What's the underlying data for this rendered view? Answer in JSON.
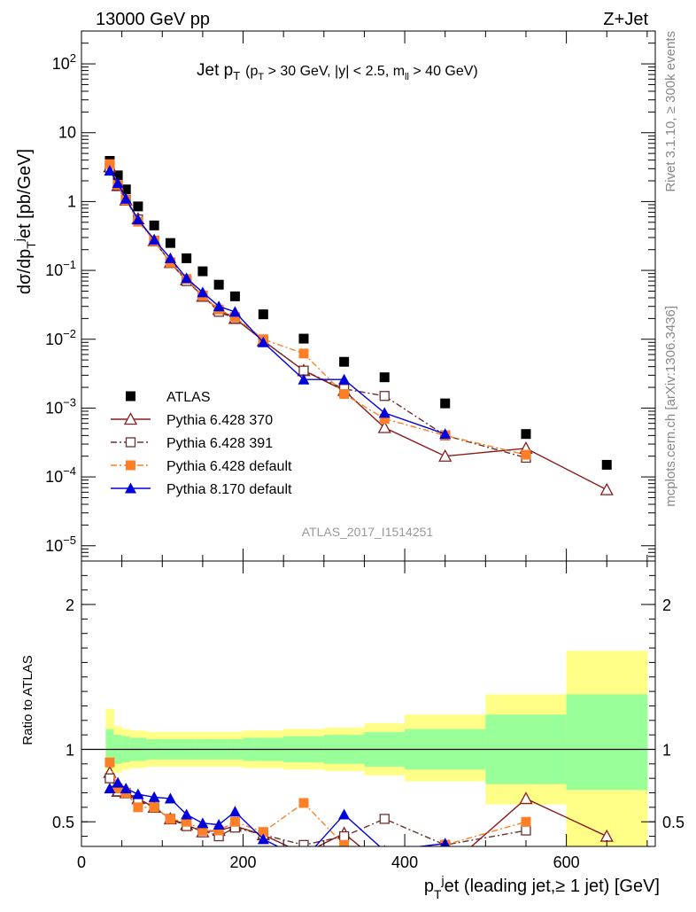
{
  "header": {
    "left": "13000 GeV pp",
    "right": "Z+Jet"
  },
  "side_labels": {
    "rivet": "Rivet 3.1.10, ≥ 300k events",
    "mcplots": "mcplots.cern.ch [arXiv:1306.3436]"
  },
  "chart_data": [
    {
      "type": "line",
      "title_main": "Jet p",
      "title_main_sub": "T",
      "title_detail": "(p",
      "title_detail_sub": "T",
      "title_detail_rest": " > 30 GeV, |y| < 2.5, m",
      "title_detail_sub2": "ll",
      "title_detail_end": " > 40 GeV)",
      "ylabel": "dσ/dp",
      "ylabel_sub": "T",
      "ylabel_sup": "j",
      "ylabel_rest": "et [pb/GeV]",
      "watermark": "ATLAS_2017_I1514251",
      "yscale": "log",
      "xlim": [
        0,
        710
      ],
      "ylim": [
        6e-06,
        300
      ],
      "y_ticks": [
        {
          "value": 1e-05,
          "base": "10",
          "exp": "−5"
        },
        {
          "value": 0.0001,
          "base": "10",
          "exp": "−4"
        },
        {
          "value": 0.001,
          "base": "10",
          "exp": "−3"
        },
        {
          "value": 0.01,
          "base": "10",
          "exp": "−2"
        },
        {
          "value": 0.1,
          "base": "10",
          "exp": "−1"
        },
        {
          "value": 1,
          "base": "1",
          "exp": ""
        },
        {
          "value": 10,
          "base": "10",
          "exp": ""
        },
        {
          "value": 100,
          "base": "10",
          "exp": "2"
        }
      ],
      "legend_position": "bottom-left",
      "series": [
        {
          "name": "ATLAS",
          "color": "#000000",
          "marker": "square-filled",
          "line": "none",
          "x": [
            35,
            45,
            55,
            70,
            90,
            110,
            130,
            150,
            170,
            190,
            225,
            275,
            325,
            375,
            450,
            550,
            650
          ],
          "y": [
            3.9,
            2.4,
            1.5,
            0.85,
            0.45,
            0.25,
            0.15,
            0.097,
            0.062,
            0.042,
            0.023,
            0.0102,
            0.0047,
            0.0028,
            0.00117,
            0.00042,
            0.00015
          ]
        },
        {
          "name": "Pythia 6.428 370",
          "color": "#8b1a1a",
          "marker": "triangle-open",
          "line": "solid",
          "x": [
            35,
            45,
            55,
            70,
            90,
            110,
            130,
            150,
            170,
            190,
            225,
            275,
            325,
            375,
            450,
            550,
            650
          ],
          "y": [
            3.2,
            1.7,
            1.05,
            0.56,
            0.27,
            0.13,
            0.073,
            0.042,
            0.027,
            0.02,
            0.0095,
            0.0035,
            0.0018,
            0.00052,
            0.0002,
            0.00026,
            6.5e-05
          ]
        },
        {
          "name": "Pythia 6.428 391",
          "color": "#6b3030",
          "marker": "square-open",
          "line": "dashdot",
          "x": [
            35,
            45,
            55,
            70,
            90,
            110,
            130,
            150,
            170,
            190,
            225,
            275,
            325,
            375,
            450,
            550
          ],
          "y": [
            3.1,
            1.7,
            1.05,
            0.55,
            0.27,
            0.13,
            0.07,
            0.043,
            0.025,
            0.02,
            0.0095,
            0.0035,
            0.0019,
            0.0015,
            0.0004,
            0.00019
          ]
        },
        {
          "name": "Pythia 6.428 default",
          "color": "#ff7f27",
          "marker": "square-filled",
          "line": "dashdot",
          "x": [
            35,
            45,
            55,
            70,
            90,
            110,
            130,
            150,
            170,
            190,
            225,
            275,
            325,
            375,
            450,
            550
          ],
          "y": [
            3.5,
            1.75,
            1.05,
            0.51,
            0.27,
            0.13,
            0.075,
            0.043,
            0.027,
            0.021,
            0.01,
            0.0062,
            0.0016,
            0.0007,
            0.0004,
            0.00021
          ]
        },
        {
          "name": "Pythia 8.170 default",
          "color": "#0000dd",
          "marker": "triangle-filled",
          "line": "solid",
          "x": [
            35,
            45,
            55,
            70,
            90,
            110,
            130,
            150,
            170,
            190,
            225,
            275,
            325,
            375,
            450
          ],
          "y": [
            2.8,
            1.85,
            1.1,
            0.55,
            0.28,
            0.15,
            0.077,
            0.048,
            0.03,
            0.025,
            0.009,
            0.0026,
            0.0026,
            0.00085,
            0.00042
          ]
        }
      ]
    },
    {
      "type": "line",
      "ylabel": "Ratio to ATLAS",
      "xlabel": "p",
      "xlabel_sub": "T",
      "xlabel_sup": "j",
      "xlabel_rest": "et (leading jet,≥ 1 jet) [GeV]",
      "xlim": [
        0,
        710
      ],
      "ylim": [
        0.33,
        2.3
      ],
      "y_ticks": [
        "0.5",
        "1",
        "2"
      ],
      "x_ticks": [
        "0",
        "200",
        "400",
        "600"
      ],
      "reference_line": 1,
      "bands": {
        "bin_edges": [
          30,
          40,
          50,
          60,
          80,
          100,
          120,
          140,
          160,
          180,
          200,
          250,
          300,
          350,
          400,
          500,
          600,
          700
        ],
        "stat_lo": [
          0.87,
          0.9,
          0.91,
          0.92,
          0.93,
          0.93,
          0.93,
          0.93,
          0.93,
          0.93,
          0.92,
          0.91,
          0.9,
          0.88,
          0.86,
          0.76,
          0.72
        ],
        "stat_hi": [
          1.14,
          1.1,
          1.09,
          1.08,
          1.07,
          1.07,
          1.07,
          1.07,
          1.07,
          1.07,
          1.08,
          1.09,
          1.1,
          1.12,
          1.14,
          1.24,
          1.38
        ],
        "sys_lo": [
          0.78,
          0.84,
          0.86,
          0.87,
          0.88,
          0.88,
          0.88,
          0.88,
          0.88,
          0.88,
          0.87,
          0.86,
          0.85,
          0.82,
          0.78,
          0.62,
          0.32
        ],
        "sys_hi": [
          1.28,
          1.16,
          1.14,
          1.13,
          1.12,
          1.12,
          1.12,
          1.12,
          1.12,
          1.12,
          1.13,
          1.14,
          1.15,
          1.18,
          1.24,
          1.38,
          1.68
        ],
        "stat_color": "#99ff99",
        "sys_color": "#ffff88"
      },
      "series": [
        {
          "name": "Pythia 6.428 370",
          "color": "#8b1a1a",
          "x": [
            35,
            45,
            55,
            70,
            90,
            110,
            130,
            150,
            170,
            190,
            225,
            275,
            325,
            375,
            450,
            550,
            650
          ],
          "y": [
            0.84,
            0.71,
            0.7,
            0.66,
            0.6,
            0.52,
            0.48,
            0.43,
            0.44,
            0.47,
            0.41,
            0.28,
            0.42,
            0.19,
            0.17,
            0.66,
            0.4
          ]
        },
        {
          "name": "Pythia 6.428 391",
          "color": "#6b3030",
          "x": [
            35,
            45,
            55,
            70,
            90,
            110,
            130,
            150,
            170,
            190,
            225,
            275,
            325,
            375,
            450,
            550
          ],
          "y": [
            0.8,
            0.71,
            0.7,
            0.65,
            0.6,
            0.52,
            0.47,
            0.44,
            0.4,
            0.46,
            0.41,
            0.34,
            0.4,
            0.52,
            0.34,
            0.44
          ]
        },
        {
          "name": "Pythia 6.428 default",
          "color": "#ff7f27",
          "x": [
            35,
            45,
            55,
            70,
            90,
            110,
            130,
            150,
            170,
            190,
            225,
            275,
            325,
            375,
            450,
            550
          ],
          "y": [
            0.91,
            0.73,
            0.7,
            0.6,
            0.6,
            0.52,
            0.5,
            0.44,
            0.44,
            0.5,
            0.43,
            0.63,
            0.34,
            0.25,
            0.34,
            0.5
          ]
        },
        {
          "name": "Pythia 8.170 default",
          "color": "#0000dd",
          "x": [
            35,
            45,
            55,
            70,
            90,
            110,
            130,
            150,
            170,
            190,
            225,
            275,
            325,
            375,
            450
          ],
          "y": [
            0.73,
            0.77,
            0.73,
            0.69,
            0.67,
            0.66,
            0.55,
            0.49,
            0.48,
            0.57,
            0.38,
            0.24,
            0.55,
            0.3,
            0.35
          ]
        }
      ]
    }
  ]
}
